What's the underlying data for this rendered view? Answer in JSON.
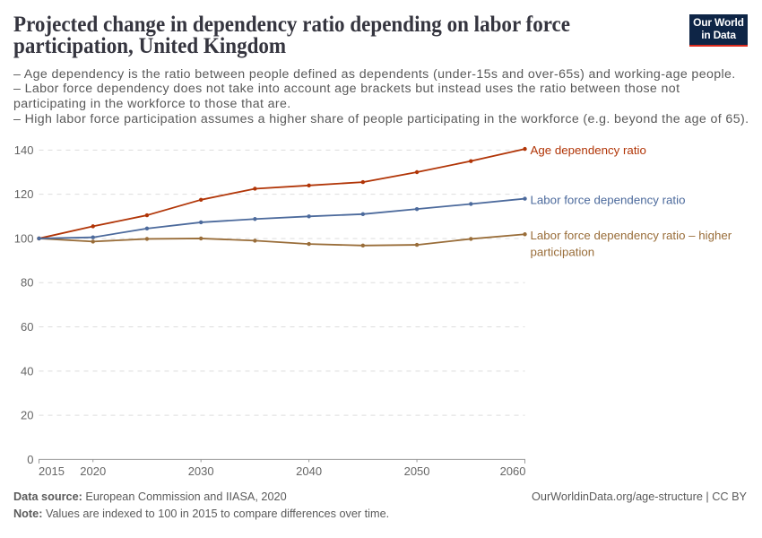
{
  "header": {
    "title": "Projected change in dependency ratio depending on labor force\nparticipation, United Kingdom",
    "logo": {
      "text": "Our World\nin Data",
      "bg_color": "#0e2546",
      "bar_color": "#dc2a1d"
    }
  },
  "subtitle": "– Age dependency is the ratio between people defined as dependents (under-15s and over-65s) and working-age people.\n– Labor force dependency does not take into account age brackets but instead uses the ratio between those not\nparticipating in the workforce to those that are.\n– High labor force participation assumes a higher share of people participating in the workforce (e.g. beyond the age of 65).",
  "chart_data": {
    "type": "line",
    "title": "Projected change in dependency ratio depending on labor force participation, United Kingdom",
    "xlabel": "",
    "ylabel": "",
    "x": [
      2015,
      2020,
      2025,
      2030,
      2035,
      2040,
      2045,
      2050,
      2055,
      2060
    ],
    "series": [
      {
        "name": "Age dependency ratio",
        "color": "#B13507",
        "values": [
          100,
          105.5,
          110.5,
          117.5,
          122.5,
          124,
          125.5,
          130,
          135,
          140.5
        ],
        "label_lines": [
          "Age dependency ratio"
        ]
      },
      {
        "name": "Labor force dependency ratio",
        "color": "#4C6A9C",
        "values": [
          100,
          100.5,
          104.5,
          107.3,
          108.8,
          110,
          111,
          113.3,
          115.6,
          118
        ],
        "label_lines": [
          "Labor force dependency ratio"
        ]
      },
      {
        "name": "Labor force dependency ratio – higher participation",
        "color": "#996D39",
        "values": [
          100,
          98.6,
          99.8,
          100,
          99,
          97.5,
          96.8,
          97.1,
          99.8,
          101.9
        ],
        "label_lines": [
          "Labor force dependency ratio – higher",
          "participation"
        ]
      }
    ],
    "xticks": [
      2015,
      2020,
      2030,
      2040,
      2050,
      2060
    ],
    "yticks": [
      0,
      20,
      40,
      60,
      80,
      100,
      120,
      140
    ],
    "xlim": [
      2015,
      2060
    ],
    "ylim": [
      0,
      145
    ],
    "grid": "dashed",
    "legend_position": "right-of-line-ends",
    "note": "Values are indexed to 100 in 2015 to compare differences over time."
  },
  "footer": {
    "source_label": "Data source:",
    "source_text": " European Commission and IIASA, 2020",
    "note_label": "Note:",
    "note_text": " Values are indexed to 100 in 2015 to compare differences over time.",
    "link": "OurWorldinData.org/age-structure | CC BY"
  }
}
